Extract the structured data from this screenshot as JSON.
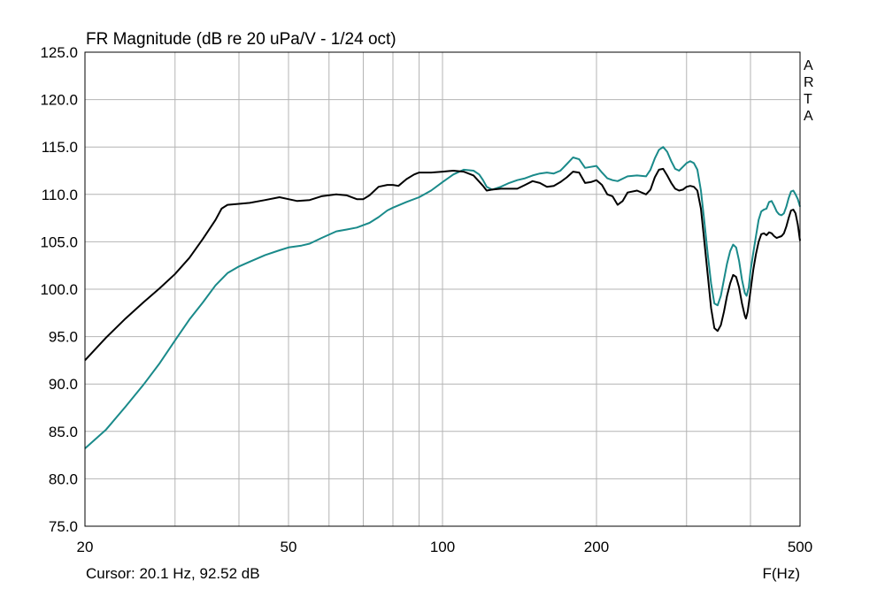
{
  "title": "FR Magnitude (dB re 20 uPa/V - 1/24 oct)",
  "watermark": [
    "A",
    "R",
    "T",
    "A"
  ],
  "cursor_text": "Cursor: 20.1 Hz, 92.52 dB",
  "x_unit_label": "F(Hz)",
  "colors": {
    "series_black": "#000000",
    "series_teal": "#1a8a8a",
    "grid": "#b4b4b4"
  },
  "chart_data": {
    "type": "line",
    "title": "FR Magnitude (dB re 20 uPa/V - 1/24 oct)",
    "xlabel": "F(Hz)",
    "ylabel": "",
    "x_scale": "log",
    "xlim": [
      20,
      500
    ],
    "ylim": [
      75,
      125
    ],
    "x_ticks": [
      20,
      50,
      100,
      200,
      500
    ],
    "x_tick_labels": [
      "20",
      "50",
      "100",
      "200",
      "500"
    ],
    "x_minor_grid": [
      30,
      40,
      60,
      70,
      80,
      90,
      300,
      400
    ],
    "y_ticks": [
      75,
      80,
      85,
      90,
      95,
      100,
      105,
      110,
      115,
      120,
      125
    ],
    "y_tick_labels": [
      "75.0",
      "80.0",
      "85.0",
      "90.0",
      "95.0",
      "100.0",
      "105.0",
      "110.0",
      "115.0",
      "120.0",
      "125.0"
    ],
    "grid": true,
    "series": [
      {
        "color": "#000000",
        "points": [
          [
            20,
            92.5
          ],
          [
            22,
            94.9
          ],
          [
            24,
            96.9
          ],
          [
            26,
            98.6
          ],
          [
            28,
            100.1
          ],
          [
            30,
            101.6
          ],
          [
            32,
            103.3
          ],
          [
            34,
            105.3
          ],
          [
            36,
            107.3
          ],
          [
            37,
            108.5
          ],
          [
            38,
            108.9
          ],
          [
            40,
            109.0
          ],
          [
            42,
            109.1
          ],
          [
            45,
            109.4
          ],
          [
            48,
            109.7
          ],
          [
            50,
            109.5
          ],
          [
            52,
            109.3
          ],
          [
            55,
            109.4
          ],
          [
            58,
            109.8
          ],
          [
            62,
            110.0
          ],
          [
            65,
            109.9
          ],
          [
            68,
            109.5
          ],
          [
            70,
            109.5
          ],
          [
            72,
            109.9
          ],
          [
            75,
            110.8
          ],
          [
            78,
            111.0
          ],
          [
            80,
            111.0
          ],
          [
            82,
            110.9
          ],
          [
            85,
            111.6
          ],
          [
            88,
            112.1
          ],
          [
            90,
            112.3
          ],
          [
            95,
            112.3
          ],
          [
            100,
            112.4
          ],
          [
            105,
            112.5
          ],
          [
            110,
            112.4
          ],
          [
            115,
            112.0
          ],
          [
            120,
            110.9
          ],
          [
            122,
            110.4
          ],
          [
            125,
            110.5
          ],
          [
            130,
            110.6
          ],
          [
            135,
            110.6
          ],
          [
            140,
            110.6
          ],
          [
            145,
            111.0
          ],
          [
            150,
            111.4
          ],
          [
            155,
            111.2
          ],
          [
            160,
            110.8
          ],
          [
            165,
            110.9
          ],
          [
            170,
            111.3
          ],
          [
            175,
            111.8
          ],
          [
            180,
            112.4
          ],
          [
            185,
            112.3
          ],
          [
            190,
            111.2
          ],
          [
            195,
            111.3
          ],
          [
            200,
            111.5
          ],
          [
            205,
            111.0
          ],
          [
            210,
            110.0
          ],
          [
            215,
            109.8
          ],
          [
            220,
            108.9
          ],
          [
            225,
            109.3
          ],
          [
            230,
            110.2
          ],
          [
            240,
            110.4
          ],
          [
            250,
            110.0
          ],
          [
            255,
            110.5
          ],
          [
            260,
            111.8
          ],
          [
            265,
            112.6
          ],
          [
            270,
            112.7
          ],
          [
            275,
            112.0
          ],
          [
            280,
            111.2
          ],
          [
            285,
            110.6
          ],
          [
            290,
            110.4
          ],
          [
            295,
            110.5
          ],
          [
            300,
            110.8
          ],
          [
            305,
            110.9
          ],
          [
            310,
            110.8
          ],
          [
            315,
            110.4
          ],
          [
            320,
            108.5
          ],
          [
            325,
            105.0
          ],
          [
            330,
            101.5
          ],
          [
            335,
            98.0
          ],
          [
            340,
            95.9
          ],
          [
            345,
            95.6
          ],
          [
            350,
            96.2
          ],
          [
            355,
            97.6
          ],
          [
            360,
            99.3
          ],
          [
            365,
            100.6
          ],
          [
            370,
            101.5
          ],
          [
            375,
            101.3
          ],
          [
            380,
            100.2
          ],
          [
            385,
            98.5
          ],
          [
            390,
            97.2
          ],
          [
            392,
            96.9
          ],
          [
            395,
            97.6
          ],
          [
            400,
            99.8
          ],
          [
            405,
            102.0
          ],
          [
            410,
            103.7
          ],
          [
            415,
            105.0
          ],
          [
            420,
            105.8
          ],
          [
            425,
            105.9
          ],
          [
            430,
            105.7
          ],
          [
            435,
            106.0
          ],
          [
            440,
            105.9
          ],
          [
            445,
            105.6
          ],
          [
            450,
            105.4
          ],
          [
            455,
            105.5
          ],
          [
            460,
            105.6
          ],
          [
            465,
            105.9
          ],
          [
            470,
            106.6
          ],
          [
            475,
            107.5
          ],
          [
            480,
            108.3
          ],
          [
            485,
            108.4
          ],
          [
            490,
            108.0
          ],
          [
            495,
            106.8
          ],
          [
            500,
            105.1
          ]
        ]
      },
      {
        "color": "#1a8a8a",
        "points": [
          [
            20,
            83.2
          ],
          [
            22,
            85.2
          ],
          [
            24,
            87.6
          ],
          [
            26,
            89.9
          ],
          [
            28,
            92.2
          ],
          [
            30,
            94.6
          ],
          [
            32,
            96.8
          ],
          [
            34,
            98.6
          ],
          [
            36,
            100.4
          ],
          [
            38,
            101.7
          ],
          [
            40,
            102.4
          ],
          [
            42,
            102.9
          ],
          [
            45,
            103.6
          ],
          [
            48,
            104.1
          ],
          [
            50,
            104.4
          ],
          [
            53,
            104.6
          ],
          [
            55,
            104.8
          ],
          [
            58,
            105.4
          ],
          [
            62,
            106.1
          ],
          [
            65,
            106.3
          ],
          [
            68,
            106.5
          ],
          [
            72,
            107.0
          ],
          [
            75,
            107.6
          ],
          [
            78,
            108.3
          ],
          [
            80,
            108.6
          ],
          [
            85,
            109.2
          ],
          [
            90,
            109.7
          ],
          [
            95,
            110.4
          ],
          [
            100,
            111.3
          ],
          [
            105,
            112.1
          ],
          [
            110,
            112.6
          ],
          [
            115,
            112.5
          ],
          [
            118,
            112.1
          ],
          [
            120,
            111.5
          ],
          [
            122,
            110.8
          ],
          [
            125,
            110.5
          ],
          [
            130,
            110.8
          ],
          [
            135,
            111.2
          ],
          [
            140,
            111.5
          ],
          [
            145,
            111.7
          ],
          [
            150,
            112.0
          ],
          [
            155,
            112.2
          ],
          [
            160,
            112.3
          ],
          [
            165,
            112.2
          ],
          [
            170,
            112.5
          ],
          [
            175,
            113.2
          ],
          [
            180,
            113.9
          ],
          [
            185,
            113.7
          ],
          [
            190,
            112.8
          ],
          [
            195,
            112.9
          ],
          [
            200,
            113.0
          ],
          [
            205,
            112.3
          ],
          [
            210,
            111.7
          ],
          [
            215,
            111.5
          ],
          [
            220,
            111.4
          ],
          [
            230,
            111.9
          ],
          [
            240,
            112.0
          ],
          [
            250,
            111.9
          ],
          [
            255,
            112.6
          ],
          [
            260,
            113.8
          ],
          [
            265,
            114.7
          ],
          [
            270,
            115.0
          ],
          [
            275,
            114.5
          ],
          [
            280,
            113.5
          ],
          [
            285,
            112.7
          ],
          [
            290,
            112.5
          ],
          [
            295,
            112.9
          ],
          [
            300,
            113.3
          ],
          [
            305,
            113.5
          ],
          [
            310,
            113.3
          ],
          [
            315,
            112.6
          ],
          [
            320,
            110.4
          ],
          [
            325,
            107.1
          ],
          [
            330,
            103.7
          ],
          [
            335,
            100.6
          ],
          [
            340,
            98.5
          ],
          [
            345,
            98.3
          ],
          [
            350,
            99.3
          ],
          [
            355,
            101.0
          ],
          [
            360,
            102.7
          ],
          [
            365,
            104.0
          ],
          [
            370,
            104.7
          ],
          [
            375,
            104.4
          ],
          [
            380,
            103.0
          ],
          [
            385,
            101.0
          ],
          [
            390,
            99.6
          ],
          [
            393,
            99.3
          ],
          [
            397,
            100.2
          ],
          [
            400,
            101.9
          ],
          [
            405,
            103.8
          ],
          [
            410,
            105.6
          ],
          [
            415,
            107.3
          ],
          [
            420,
            108.2
          ],
          [
            425,
            108.4
          ],
          [
            430,
            108.5
          ],
          [
            435,
            109.2
          ],
          [
            440,
            109.3
          ],
          [
            445,
            108.8
          ],
          [
            450,
            108.2
          ],
          [
            455,
            107.9
          ],
          [
            460,
            107.8
          ],
          [
            465,
            108.0
          ],
          [
            470,
            108.7
          ],
          [
            475,
            109.6
          ],
          [
            480,
            110.3
          ],
          [
            485,
            110.4
          ],
          [
            490,
            110.0
          ],
          [
            495,
            109.5
          ],
          [
            500,
            108.7
          ]
        ]
      }
    ]
  }
}
